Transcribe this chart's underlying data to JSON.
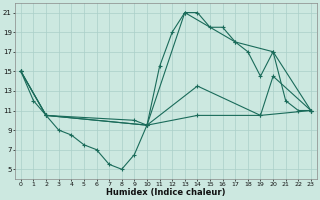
{
  "xlabel": "Humidex (Indice chaleur)",
  "background_color": "#cce8e0",
  "grid_color": "#aacfc8",
  "line_color": "#1a6b5a",
  "ylim": [
    4,
    22
  ],
  "xlim": [
    -0.5,
    23.5
  ],
  "yticks": [
    5,
    7,
    9,
    11,
    13,
    15,
    17,
    19,
    21
  ],
  "xticks": [
    0,
    1,
    2,
    3,
    4,
    5,
    6,
    7,
    8,
    9,
    10,
    11,
    12,
    13,
    14,
    15,
    16,
    17,
    18,
    19,
    20,
    21,
    22,
    23
  ],
  "series1": [
    [
      0,
      15
    ],
    [
      1,
      12
    ],
    [
      2,
      10.5
    ],
    [
      3,
      9
    ],
    [
      4,
      8.5
    ],
    [
      5,
      7.5
    ],
    [
      6,
      7
    ],
    [
      7,
      5.5
    ],
    [
      8,
      5
    ],
    [
      9,
      6.5
    ],
    [
      10,
      9.5
    ],
    [
      11,
      15.5
    ],
    [
      12,
      19
    ],
    [
      13,
      21
    ],
    [
      14,
      21
    ],
    [
      15,
      19.5
    ],
    [
      16,
      19.5
    ],
    [
      17,
      18
    ],
    [
      18,
      17
    ],
    [
      19,
      14.5
    ],
    [
      20,
      17
    ],
    [
      21,
      12
    ],
    [
      22,
      11
    ],
    [
      23,
      11
    ]
  ],
  "series2": [
    [
      0,
      15
    ],
    [
      2,
      10.5
    ],
    [
      10,
      9.5
    ],
    [
      13,
      21
    ],
    [
      17,
      18
    ],
    [
      20,
      17
    ],
    [
      23,
      11
    ]
  ],
  "series3": [
    [
      0,
      15
    ],
    [
      2,
      10.5
    ],
    [
      10,
      9.5
    ],
    [
      14,
      13.5
    ],
    [
      19,
      10.5
    ],
    [
      20,
      14.5
    ],
    [
      23,
      11
    ]
  ],
  "series4": [
    [
      0,
      15
    ],
    [
      2,
      10.5
    ],
    [
      9,
      10
    ],
    [
      10,
      9.5
    ],
    [
      14,
      10.5
    ],
    [
      19,
      10.5
    ],
    [
      23,
      11
    ]
  ]
}
